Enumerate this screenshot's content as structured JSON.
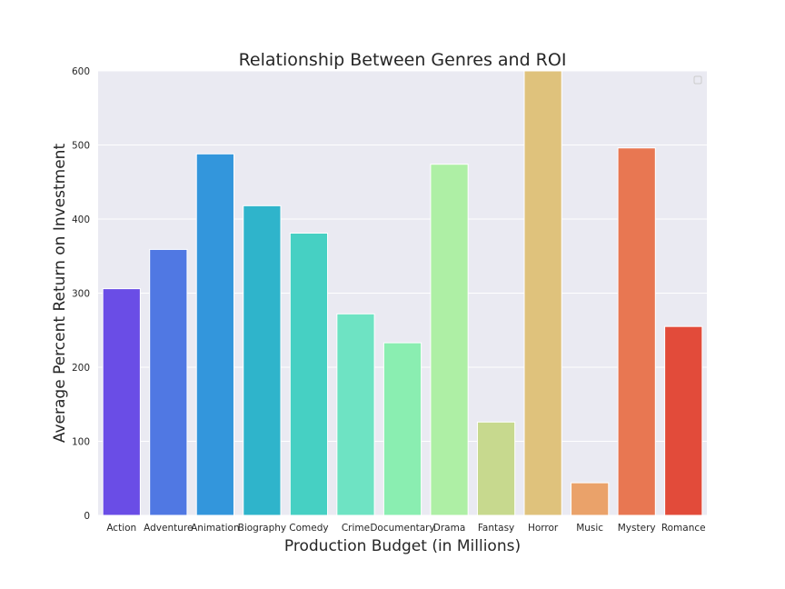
{
  "chart_data": {
    "type": "bar",
    "title": "Relationship Between Genres and ROI",
    "xlabel": "Production Budget (in Millions)",
    "ylabel": "Average Percent Return on Investment",
    "categories": [
      "Action",
      "Adventure",
      "Animation",
      "Biography",
      "Comedy",
      "Crime",
      "Documentary",
      "Drama",
      "Fantasy",
      "Horror",
      "Music",
      "Mystery",
      "Romance"
    ],
    "values": [
      306,
      359,
      488,
      418,
      381,
      272,
      233,
      474,
      126,
      600,
      44,
      496,
      255
    ],
    "colors": [
      "#6a4de6",
      "#5078e3",
      "#3396dc",
      "#2fb4cb",
      "#46d0c3",
      "#6ee3c3",
      "#8aeeb1",
      "#aeefa5",
      "#c7d98e",
      "#dfc27c",
      "#eaa26a",
      "#e87752",
      "#e24b3a"
    ],
    "ylim": [
      0,
      600
    ],
    "yticks": [
      0,
      100,
      200,
      300,
      400,
      500,
      600
    ],
    "grid": true,
    "legend": "top-right, empty"
  }
}
